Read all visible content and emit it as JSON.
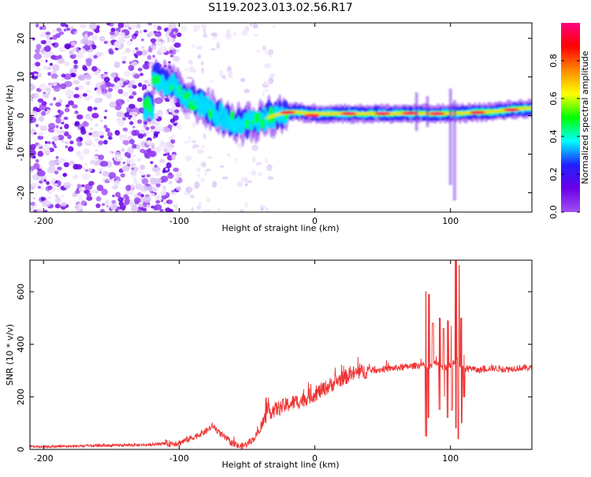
{
  "figure": {
    "title": "S119.2023.013.02.56.R17"
  },
  "chart_data": [
    {
      "type": "heatmap",
      "name": "spectrogram",
      "xlabel": "Height of straight line (km)",
      "ylabel": "Frequency (Hz)",
      "xlim": [
        -210,
        160
      ],
      "ylim": [
        -25,
        24
      ],
      "xticks": [
        -200,
        -100,
        0,
        100
      ],
      "yticks": [
        -20,
        -10,
        0,
        10,
        20
      ],
      "colorbar": {
        "label": "Normalized spectral amplitude",
        "range": [
          0,
          1
        ],
        "ticks": [
          "0.0",
          "0.2",
          "0.4",
          "0.6",
          "0.8"
        ],
        "tick_values": [
          0.0,
          0.2,
          0.4,
          0.6,
          0.8
        ],
        "colormap": [
          "#ffffff",
          "#ece0fa",
          "#a050f5",
          "#6a00e6",
          "#2020ff",
          "#00ffff",
          "#00ff00",
          "#ffff00",
          "#ff8800",
          "#ff0000",
          "#ff0080"
        ]
      },
      "ridge": [
        {
          "x": -120,
          "f": 10
        },
        {
          "x": -105,
          "f": 8
        },
        {
          "x": -95,
          "f": 5
        },
        {
          "x": -85,
          "f": 3
        },
        {
          "x": -75,
          "f": 1
        },
        {
          "x": -65,
          "f": -1
        },
        {
          "x": -55,
          "f": -2
        },
        {
          "x": -45,
          "f": -2
        },
        {
          "x": -35,
          "f": -0.5
        },
        {
          "x": -25,
          "f": 0.5
        },
        {
          "x": -15,
          "f": 1
        },
        {
          "x": -5,
          "f": 0.5
        },
        {
          "x": 10,
          "f": 0.5
        },
        {
          "x": 40,
          "f": 0.5
        },
        {
          "x": 70,
          "f": 0.5
        },
        {
          "x": 100,
          "f": 0.5
        },
        {
          "x": 130,
          "f": 1
        },
        {
          "x": 160,
          "f": 2
        }
      ],
      "hot_spots": [
        {
          "x": -20,
          "f": 0.8
        },
        {
          "x": -2,
          "f": 0
        },
        {
          "x": 25,
          "f": 0.5
        },
        {
          "x": 50,
          "f": 0.5
        },
        {
          "x": 70,
          "f": 0.6
        },
        {
          "x": 90,
          "f": 0.5
        },
        {
          "x": 120,
          "f": 0.8
        },
        {
          "x": 145,
          "f": 1.5
        }
      ]
    },
    {
      "type": "line",
      "name": "snr",
      "xlabel": "Height of straight line (km)",
      "ylabel": "SNR (10 * v/v)",
      "xlim": [
        -210,
        160
      ],
      "ylim": [
        0,
        720
      ],
      "xticks": [
        -200,
        -100,
        0,
        100
      ],
      "yticks": [
        0,
        200,
        400,
        600
      ],
      "color": "#ee3333",
      "series": [
        {
          "x": [
            -210,
            -180,
            -150,
            -120,
            -100,
            -90,
            -80,
            -75,
            -70,
            -65,
            -60,
            -55,
            -50,
            -45,
            -40,
            -35,
            -30,
            -25,
            -20,
            -15,
            -10,
            -5,
            0,
            10,
            20,
            30,
            40,
            50,
            60,
            70,
            75,
            80,
            85,
            90,
            95,
            100,
            105,
            110,
            115,
            120,
            130,
            140,
            150,
            160
          ],
          "y": [
            10,
            12,
            15,
            18,
            25,
            45,
            70,
            90,
            60,
            40,
            20,
            10,
            20,
            40,
            80,
            140,
            150,
            160,
            170,
            180,
            185,
            200,
            210,
            240,
            270,
            290,
            300,
            305,
            310,
            315,
            320,
            320,
            310,
            330,
            310,
            320,
            340,
            300,
            310,
            300,
            310,
            305,
            310,
            310
          ]
        }
      ],
      "spikes": [
        {
          "x": 82,
          "lo": 50,
          "hi": 600
        },
        {
          "x": 84,
          "lo": 120,
          "hi": 590
        },
        {
          "x": 87,
          "lo": 180,
          "hi": 480
        },
        {
          "x": 92,
          "lo": 150,
          "hi": 500
        },
        {
          "x": 95,
          "lo": 200,
          "hi": 460
        },
        {
          "x": 98,
          "lo": 120,
          "hi": 490
        },
        {
          "x": 101,
          "lo": 150,
          "hi": 470
        },
        {
          "x": 104,
          "lo": 80,
          "hi": 730
        },
        {
          "x": 106,
          "lo": 40,
          "hi": 700
        },
        {
          "x": 108,
          "lo": 100,
          "hi": 500
        },
        {
          "x": 110,
          "lo": 200,
          "hi": 360
        }
      ]
    }
  ]
}
